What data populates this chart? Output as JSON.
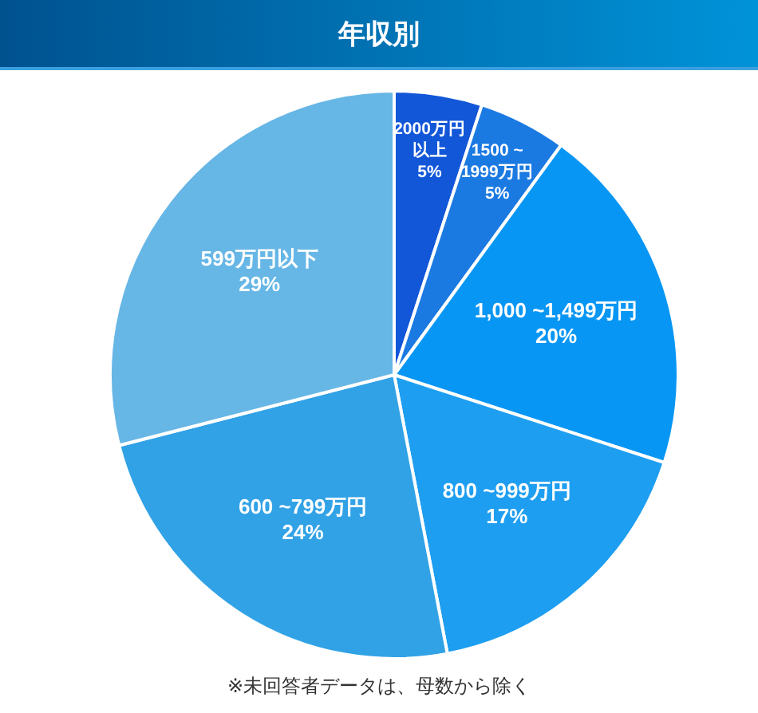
{
  "chart_data": {
    "type": "pie",
    "title": "年収別",
    "categories": [
      "2000万円以上",
      "1500 ~1999万円",
      "1,000 ~1,499万円",
      "800 ~999万円",
      "600 ~799万円",
      "599万円以下"
    ],
    "values": [
      5,
      5,
      20,
      17,
      24,
      29
    ],
    "colors": [
      "#1257d8",
      "#1b7ae2",
      "#0896f4",
      "#1e9ef0",
      "#31a2e6",
      "#66b6e6"
    ],
    "value_labels": [
      "5%",
      "5%",
      "20%",
      "17%",
      "24%",
      "29%"
    ],
    "annotations": [
      "※未回答者データは、母数から除く"
    ]
  }
}
